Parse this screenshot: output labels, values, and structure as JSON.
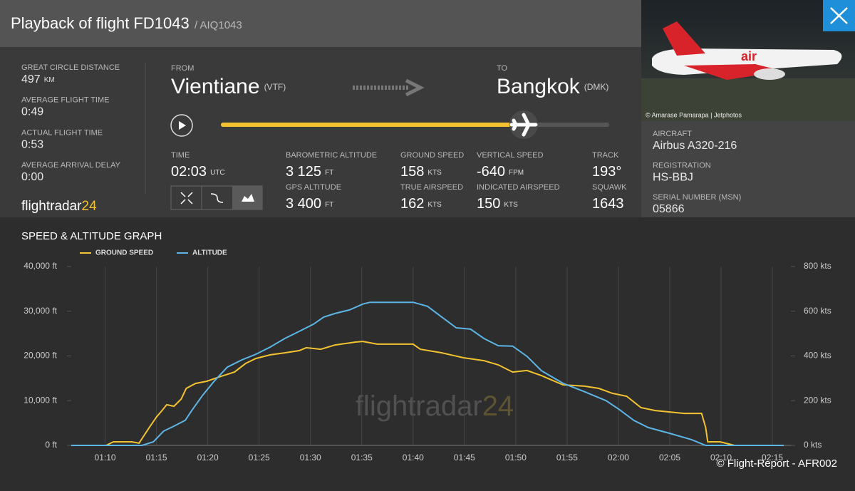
{
  "header": {
    "title": "Playback of flight FD1043",
    "subtitle": "/ AIQ1043"
  },
  "summary": [
    {
      "label": "GREAT CIRCLE DISTANCE",
      "value": "497",
      "unit": "KM"
    },
    {
      "label": "AVERAGE FLIGHT TIME",
      "value": "0:49"
    },
    {
      "label": "ACTUAL FLIGHT TIME",
      "value": "0:53"
    },
    {
      "label": "AVERAGE ARRIVAL DELAY",
      "value": "0:00"
    }
  ],
  "logo": {
    "name": "flightradar",
    "suffix": "24"
  },
  "route": {
    "from_label": "FROM",
    "from_city": "Vientiane",
    "from_code": "(VTF)",
    "to_label": "TO",
    "to_city": "Bangkok",
    "to_code": "(DMK)"
  },
  "flight_data": [
    {
      "label": "TIME",
      "value": "02:03",
      "unit": "UTC"
    },
    {
      "label": "BAROMETRIC ALTITUDE",
      "value": "3 125",
      "unit": "FT"
    },
    {
      "label": "GPS ALTITUDE",
      "value": "3 400",
      "unit": "FT"
    },
    {
      "label": "GROUND SPEED",
      "value": "158",
      "unit": "KTS"
    },
    {
      "label": "TRUE AIRSPEED",
      "value": "162",
      "unit": "KTS"
    },
    {
      "label": "VERTICAL SPEED",
      "value": "-640",
      "unit": "FPM"
    },
    {
      "label": "INDICATED AIRSPEED",
      "value": "150",
      "unit": "KTS"
    },
    {
      "label": "TRACK",
      "value": "193°"
    },
    {
      "label": "SQUAWK",
      "value": "1643"
    }
  ],
  "photo_credit": "© Amarase Pamarapa | Jetphotos",
  "aircraft": [
    {
      "label": "AIRCRAFT",
      "value": "Airbus A320-216"
    },
    {
      "label": "REGISTRATION",
      "value": "HS-BBJ"
    },
    {
      "label": "SERIAL NUMBER (MSN)",
      "value": "05866"
    }
  ],
  "footer": {
    "credit": "© Flight-Report - AFR002"
  },
  "chart_data": {
    "type": "line",
    "title": "SPEED & ALTITUDE GRAPH",
    "legend": "top-left",
    "grid": "x",
    "xlim": [
      66.7,
      136.8
    ],
    "xticks": [
      {
        "value": 70,
        "label": "01:10"
      },
      {
        "value": 75,
        "label": "01:15"
      },
      {
        "value": 80,
        "label": "01:20"
      },
      {
        "value": 85,
        "label": "01:25"
      },
      {
        "value": 90,
        "label": "01:30"
      },
      {
        "value": 95,
        "label": "01:35"
      },
      {
        "value": 100,
        "label": "01:40"
      },
      {
        "value": 105,
        "label": "01:45"
      },
      {
        "value": 110,
        "label": "01:50"
      },
      {
        "value": 115,
        "label": "01:55"
      },
      {
        "value": 120,
        "label": "02:00"
      },
      {
        "value": 125,
        "label": "02:05"
      },
      {
        "value": 130,
        "label": "02:10"
      },
      {
        "value": 135,
        "label": "02:15"
      }
    ],
    "ylim": [
      0,
      40000
    ],
    "yticks": [
      {
        "value": 0,
        "label": "0 ft"
      },
      {
        "value": 10000,
        "label": "10,000 ft"
      },
      {
        "value": 20000,
        "label": "20,000 ft"
      },
      {
        "value": 30000,
        "label": "30,000 ft"
      },
      {
        "value": 40000,
        "label": "40,000 ft"
      }
    ],
    "y2lim": [
      0,
      800
    ],
    "y2ticks": [
      {
        "value": 0,
        "label": "0 kts"
      },
      {
        "value": 200,
        "label": "200 kts"
      },
      {
        "value": 400,
        "label": "400 kts"
      },
      {
        "value": 600,
        "label": "600 kts"
      },
      {
        "value": 800,
        "label": "800 kts"
      }
    ],
    "series": [
      {
        "name": "GROUND SPEED",
        "color": "#f2c230",
        "axis": "y2",
        "x": [
          66.7,
          70.1,
          70.8,
          72.6,
          73.3,
          74.3,
          75,
          75.6,
          76,
          76.7,
          77.4,
          77.9,
          78.8,
          79.9,
          81.3,
          82.6,
          83.7,
          84.7,
          86.1,
          87.5,
          88.9,
          89.6,
          91,
          92.4,
          94.4,
          95.1,
          96.5,
          100,
          100.7,
          102.8,
          104.9,
          106.9,
          108.3,
          109.7,
          111.1,
          112.5,
          114.6,
          116.7,
          118.1,
          119.4,
          120.8,
          122.2,
          123.6,
          126.4,
          128.1,
          128.5,
          128.7,
          129.9,
          131.3,
          136.1
        ],
        "values": [
          0,
          0,
          16,
          16,
          10,
          80,
          127,
          159,
          182,
          175,
          207,
          255,
          277,
          287,
          309,
          328,
          367,
          389,
          405,
          414,
          424,
          437,
          430,
          449,
          462,
          465,
          453,
          453,
          430,
          414,
          392,
          379,
          360,
          328,
          335,
          312,
          271,
          265,
          255,
          233,
          220,
          169,
          156,
          143,
          143,
          80,
          16,
          16,
          0,
          0
        ]
      },
      {
        "name": "ALTITUDE",
        "color": "#5db5e6",
        "x": [
          66.7,
          73.6,
          74.7,
          75.7,
          76.7,
          77.8,
          78.5,
          79.5,
          80.6,
          81.9,
          83.3,
          84.7,
          86.1,
          87.5,
          88.9,
          90.3,
          91.3,
          92.4,
          93.8,
          95.1,
          95.8,
          100,
          101.4,
          102.8,
          104.2,
          105.6,
          106.9,
          108.3,
          109.7,
          111.1,
          112.5,
          114.6,
          116.7,
          118.8,
          120.1,
          121.5,
          122.9,
          125,
          127.1,
          128.5,
          136.1
        ],
        "values": [
          0,
          0,
          800,
          3200,
          4300,
          5600,
          8000,
          11200,
          14300,
          17500,
          19100,
          20400,
          22000,
          23900,
          25500,
          27100,
          28700,
          29500,
          30300,
          31600,
          32000,
          32000,
          31100,
          28700,
          26300,
          26000,
          23900,
          22300,
          22200,
          19900,
          16700,
          13900,
          12000,
          10000,
          8000,
          5600,
          4000,
          2700,
          1300,
          0,
          0
        ]
      }
    ]
  }
}
